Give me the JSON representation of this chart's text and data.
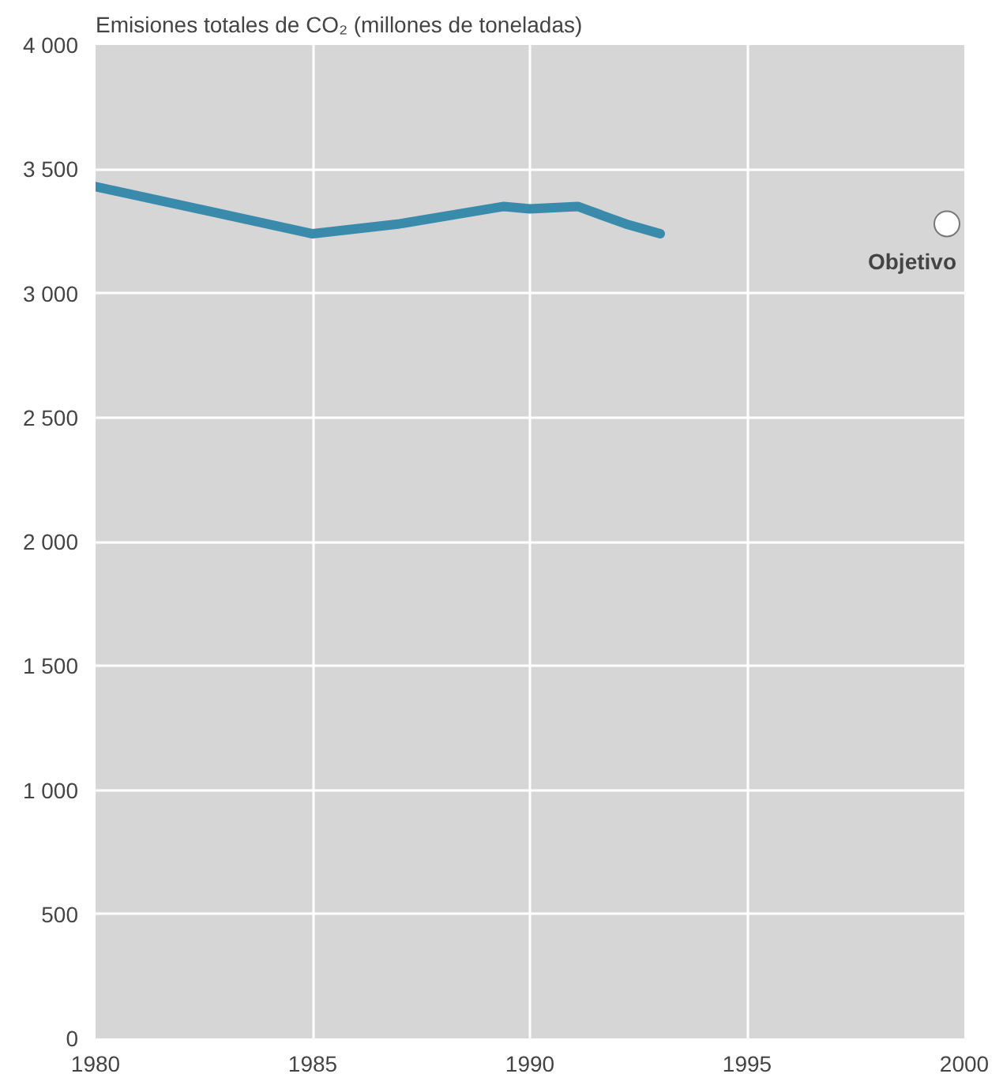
{
  "chart_data": {
    "type": "line",
    "title": "Emisiones totales de CO₂ (millones de toneladas)",
    "xlim": [
      1980,
      2000
    ],
    "xticks": [
      1980,
      1985,
      1990,
      1995,
      2000
    ],
    "ylim": [
      0,
      4000
    ],
    "yticks": [
      {
        "value": 0,
        "label": "0"
      },
      {
        "value": 500,
        "label": "500"
      },
      {
        "value": 1000,
        "label": "1 000"
      },
      {
        "value": 1500,
        "label": "1 500"
      },
      {
        "value": 2000,
        "label": "2 000"
      },
      {
        "value": 2500,
        "label": "2 500"
      },
      {
        "value": 3000,
        "label": "3 000"
      },
      {
        "value": 3500,
        "label": "3 500"
      },
      {
        "value": 4000,
        "label": "4 000"
      }
    ],
    "grid": true,
    "marker": "none",
    "line_style": "solid",
    "series": [
      {
        "color": "#3a8aab",
        "x": [
          1980,
          1985,
          1987,
          1989.4,
          1990,
          1991.1,
          1992.2,
          1993
        ],
        "values": [
          3430,
          3240,
          3280,
          3350,
          3340,
          3350,
          3280,
          3240
        ]
      },
      {
        "type": "scatter",
        "marker": "circle",
        "color": "#ffffff",
        "x": [
          1999.6
        ],
        "values": [
          3280
        ]
      }
    ],
    "annotations": [
      {
        "text": "Objetivo",
        "x": 1999.6,
        "y": 3280
      }
    ]
  }
}
